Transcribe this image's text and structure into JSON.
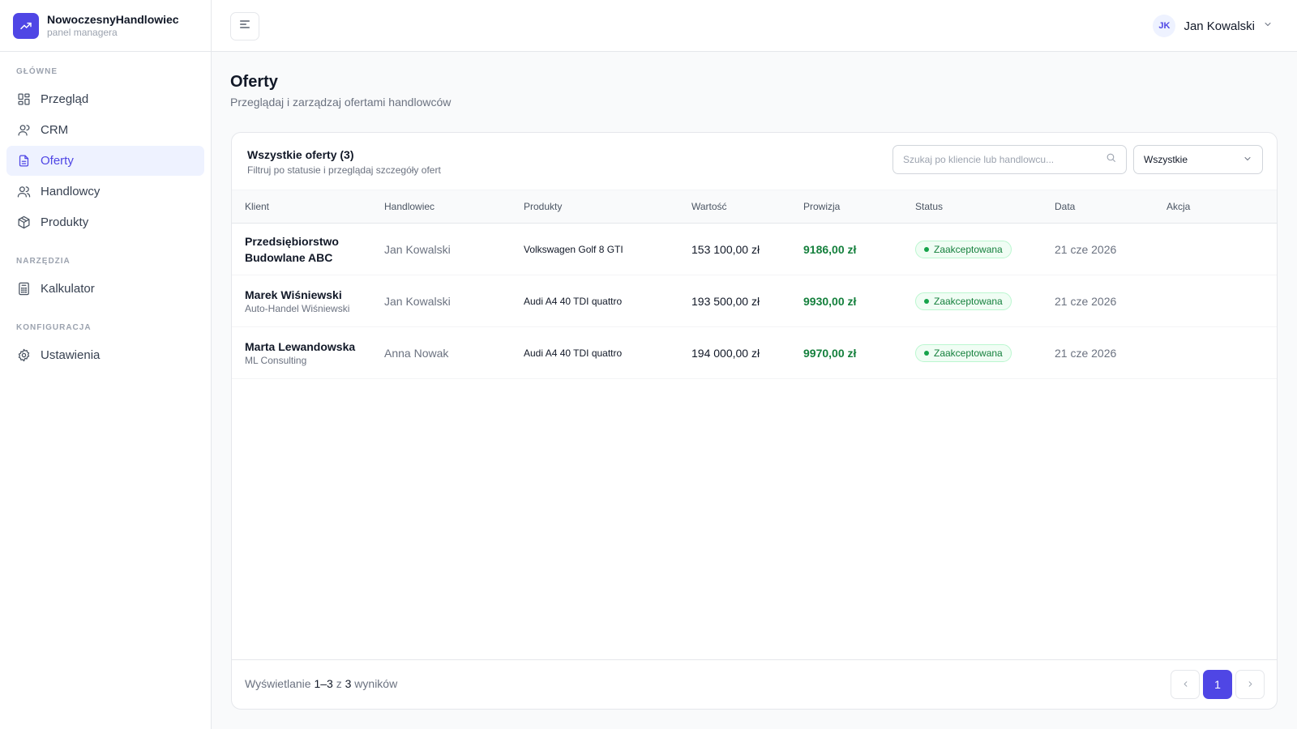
{
  "brand": {
    "name": "NowoczesnyHandlowiec",
    "subtitle": "panel managera",
    "logo_icon": "trending-up-icon"
  },
  "sidebar": {
    "sections": [
      {
        "heading": "GŁÓWNE",
        "items": [
          {
            "label": "Przegląd",
            "icon": "layout-grid-icon"
          },
          {
            "label": "CRM",
            "icon": "user-icon"
          },
          {
            "label": "Oferty",
            "icon": "file-text-icon",
            "active": true
          },
          {
            "label": "Handlowcy",
            "icon": "users-icon"
          },
          {
            "label": "Produkty",
            "icon": "package-icon"
          }
        ]
      },
      {
        "heading": "NARZĘDZIA",
        "items": [
          {
            "label": "Kalkulator",
            "icon": "calculator-icon"
          }
        ]
      },
      {
        "heading": "KONFIGURACJA",
        "items": [
          {
            "label": "Ustawienia",
            "icon": "gear-icon"
          }
        ]
      }
    ]
  },
  "header": {
    "user_initials": "JK",
    "user_name": "Jan Kowalski"
  },
  "page": {
    "title": "Oferty",
    "subtitle": "Przeglądaj i zarządzaj ofertami handlowców"
  },
  "card": {
    "title": "Wszystkie oferty (3)",
    "subtitle": "Filtruj po statusie i przeglądaj szczegóły ofert",
    "search_placeholder": "Szukaj po kliencie lub handlowcu...",
    "filter_value": "Wszystkie"
  },
  "table": {
    "columns": [
      "Klient",
      "Handlowiec",
      "Produkty",
      "Wartość",
      "Prowizja",
      "Status",
      "Data",
      "Akcja"
    ],
    "rows": [
      {
        "client": "Przedsiębiorstwo Budowlane ABC",
        "client_sub": "",
        "salesperson": "Jan Kowalski",
        "product": "Volkswagen Golf 8 GTI",
        "value": "153 100,00 zł",
        "commission": "9186,00 zł",
        "status": "Zaakceptowana",
        "date": "21 cze 2026"
      },
      {
        "client": "Marek Wiśniewski",
        "client_sub": "Auto-Handel Wiśniewski",
        "salesperson": "Jan Kowalski",
        "product": "Audi A4 40 TDI quattro",
        "value": "193 500,00 zł",
        "commission": "9930,00 zł",
        "status": "Zaakceptowana",
        "date": "21 cze 2026"
      },
      {
        "client": "Marta Lewandowska",
        "client_sub": "ML Consulting",
        "salesperson": "Anna Nowak",
        "product": "Audi A4 40 TDI quattro",
        "value": "194 000,00 zł",
        "commission": "9970,00 zł",
        "status": "Zaakceptowana",
        "date": "21 cze 2026"
      }
    ]
  },
  "footer": {
    "prefix": "Wyświetlanie",
    "range": "1–3",
    "of": "z",
    "total": "3",
    "suffix": "wyników",
    "current_page": "1"
  },
  "colors": {
    "accent": "#4f46e5",
    "success": "#15803d"
  }
}
